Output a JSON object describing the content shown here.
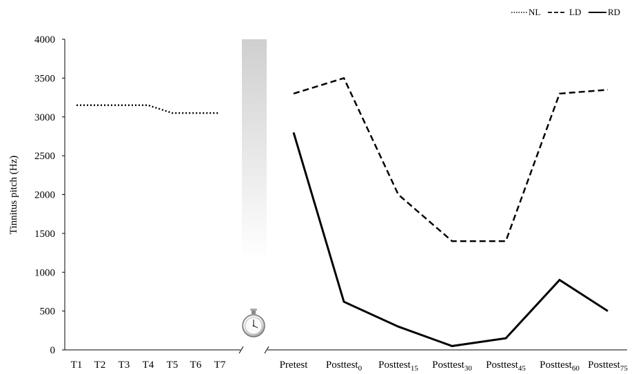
{
  "chart_data": {
    "type": "line",
    "ylabel": "Tinnitus pitch (Hz)",
    "ylim": [
      0,
      4000
    ],
    "yticks": [
      "0",
      "500",
      "1000",
      "1500",
      "2000",
      "2500",
      "3000",
      "3500",
      "4000"
    ],
    "legend": {
      "placement": "top-right",
      "entries": [
        {
          "name": "NL",
          "style": "dotted"
        },
        {
          "name": "LD",
          "style": "dashed"
        },
        {
          "name": "RD",
          "style": "solid"
        }
      ]
    },
    "left_panel": {
      "categories": [
        "T1",
        "T2",
        "T3",
        "T4",
        "T5",
        "T6",
        "T7"
      ],
      "series": [
        {
          "name": "NL",
          "values": [
            3150,
            3150,
            3150,
            3150,
            3050,
            3050,
            3050
          ]
        }
      ]
    },
    "right_panel": {
      "categories": [
        {
          "base": "Pretest",
          "sub": ""
        },
        {
          "base": "Posttest",
          "sub": "0"
        },
        {
          "base": "Posttest",
          "sub": "15"
        },
        {
          "base": "Posttest",
          "sub": "30"
        },
        {
          "base": "Posttest",
          "sub": "45"
        },
        {
          "base": "Posttest",
          "sub": "60"
        },
        {
          "base": "Posttest",
          "sub": "75"
        }
      ],
      "series": [
        {
          "name": "LD",
          "values": [
            3300,
            3500,
            2000,
            1400,
            1400,
            3300,
            3350
          ]
        },
        {
          "name": "RD",
          "values": [
            2800,
            620,
            300,
            50,
            150,
            900,
            500
          ]
        }
      ]
    },
    "grid": false,
    "timer_icon": "stopwatch-icon"
  }
}
